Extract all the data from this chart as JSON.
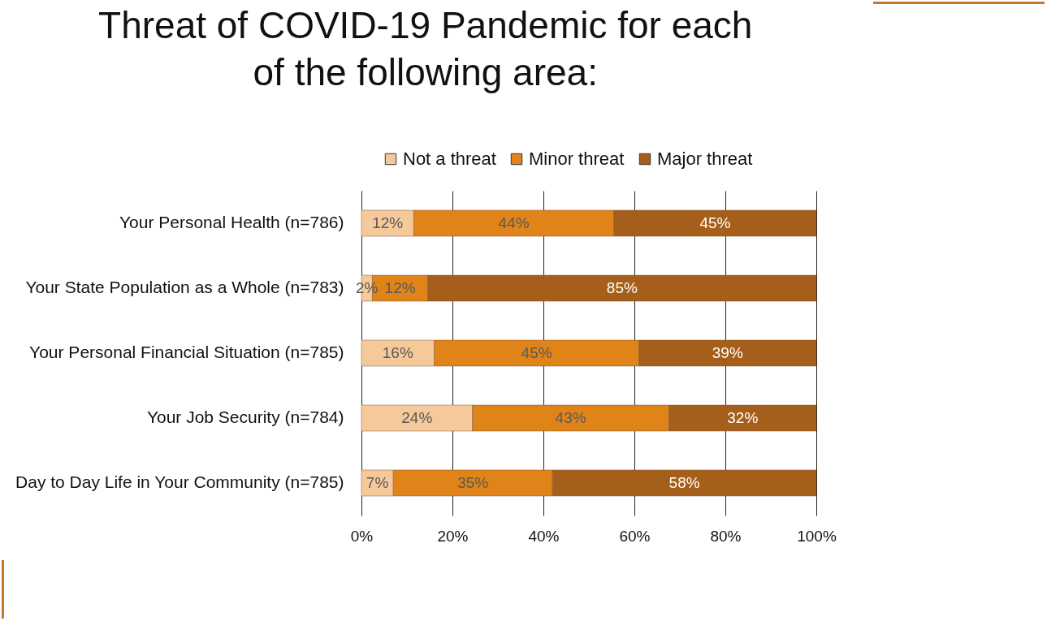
{
  "chart_data": {
    "type": "bar",
    "orientation": "horizontal",
    "stacked": true,
    "title": "Threat of COVID-19 Pandemic for each of the following area:",
    "categories": [
      "Your Personal Health (n=786)",
      "Your State Population as a Whole (n=783)",
      "Your Personal Financial Situation (n=785)",
      "Your Job Security (n=784)",
      "Day to Day Life in Your Community (n=785)"
    ],
    "series": [
      {
        "name": "Not a threat",
        "color": "#f5c99a",
        "values": [
          11.5,
          2.4,
          16,
          24.4,
          7
        ],
        "value_labels": [
          "12%",
          "2%",
          "16%",
          "24%",
          "7%"
        ]
      },
      {
        "name": "Minor threat",
        "color": "#e08419",
        "values": [
          44,
          12.2,
          45,
          43.2,
          35
        ],
        "value_labels": [
          "44%",
          "12%",
          "45%",
          "43%",
          "35%"
        ]
      },
      {
        "name": "Major threat",
        "color": "#a65f1b",
        "values": [
          44.5,
          85.4,
          39,
          32.4,
          58
        ],
        "value_labels": [
          "45%",
          "85%",
          "39%",
          "32%",
          "58%"
        ]
      }
    ],
    "xlim": [
      0,
      100
    ],
    "xticks": [
      {
        "value": 0,
        "label": "0%"
      },
      {
        "value": 20,
        "label": "20%"
      },
      {
        "value": 40,
        "label": "40%"
      },
      {
        "value": 60,
        "label": "60%"
      },
      {
        "value": 80,
        "label": "80%"
      },
      {
        "value": 100,
        "label": "100%"
      }
    ],
    "grid": "x",
    "legend": "top right"
  }
}
